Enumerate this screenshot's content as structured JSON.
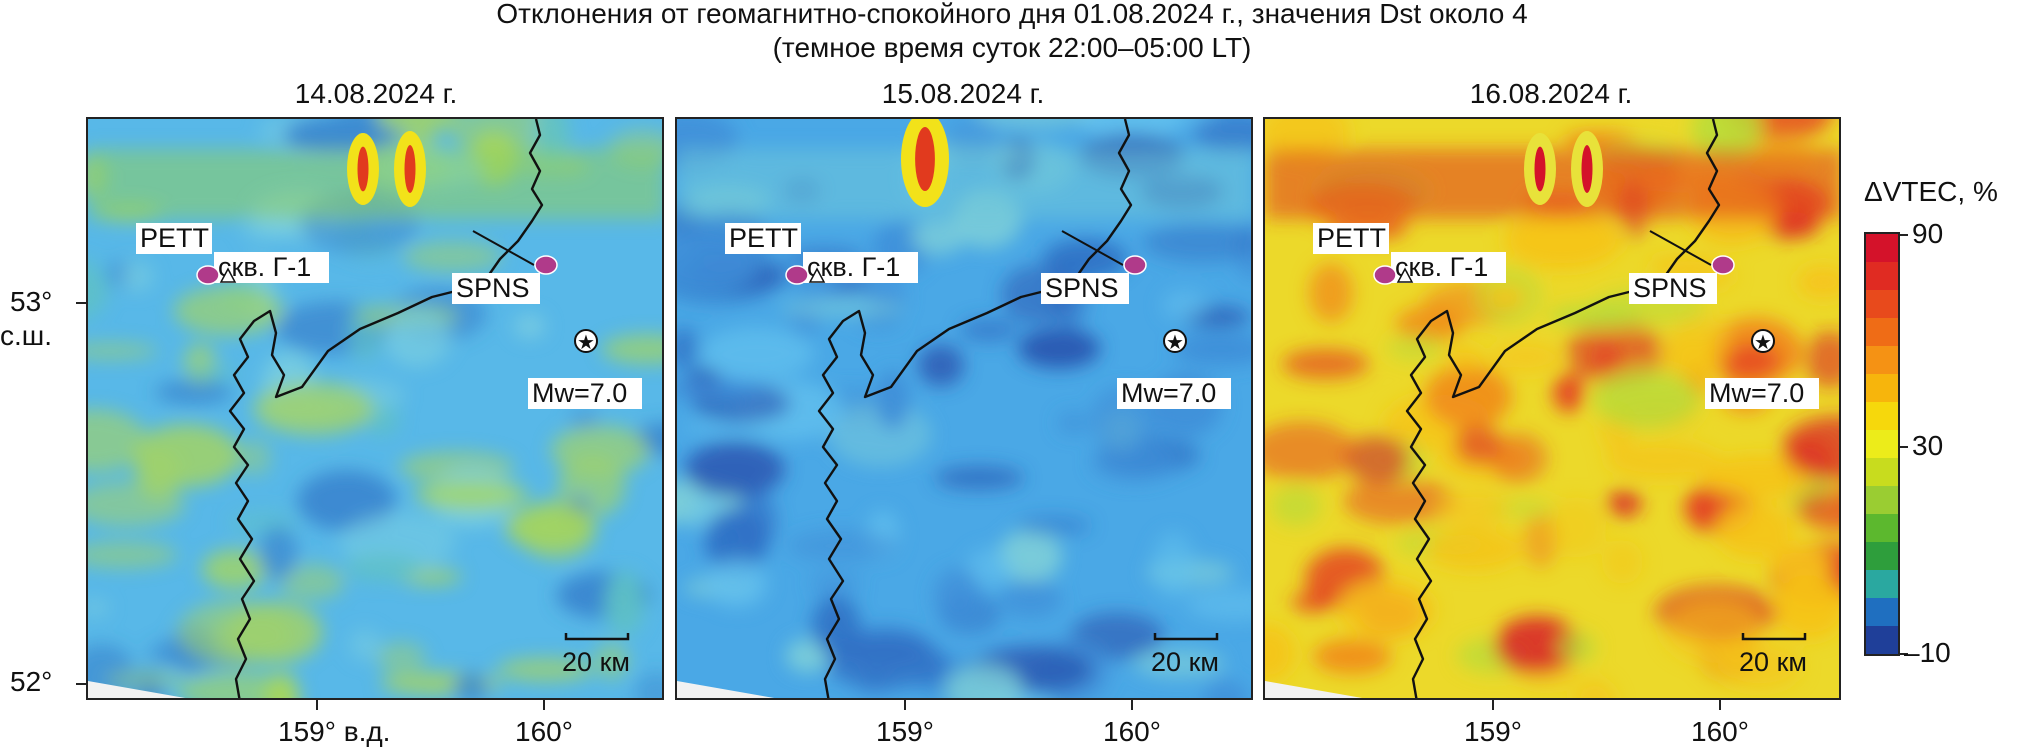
{
  "title": {
    "line1": "Отклонения от геомагнитно-спокойного дня 01.08.2024 г., значения Dst около 4",
    "line2": "(темное время суток 22:00–05:00 LT)"
  },
  "panels": [
    {
      "date": "14.08.2024 г.",
      "color_scheme": "low",
      "labels": {
        "station_west": "PETT",
        "well": "скв. Г-1",
        "station_east": "SPNS",
        "quake": "Mw=7.0",
        "scale": "20 км"
      }
    },
    {
      "date": "15.08.2024 г.",
      "color_scheme": "lowest",
      "labels": {
        "station_west": "PETT",
        "well": "скв. Г-1",
        "station_east": "SPNS",
        "quake": "Mw=7.0",
        "scale": "20 км"
      }
    },
    {
      "date": "16.08.2024 г.",
      "color_scheme": "high",
      "labels": {
        "station_west": "PETT",
        "well": "скв. Г-1",
        "station_east": "SPNS",
        "quake": "Mw=7.0",
        "scale": "20 км"
      }
    }
  ],
  "axes": {
    "lat_ticks": [
      "53°",
      "52°"
    ],
    "lat_suffix": "с.ш.",
    "lon_ticks": [
      "159° в.д.",
      "160°",
      "159°",
      "160°",
      "159°",
      "160°"
    ]
  },
  "colorbar": {
    "title": "ΔVTEC, %",
    "tick_labels": [
      "90",
      "30",
      "–10"
    ],
    "range": [
      -10,
      90
    ],
    "colors": [
      "#1f3f99",
      "#1f6fc0",
      "#2aa8a0",
      "#2e9e3c",
      "#5cb82e",
      "#9acd32",
      "#c8dc1e",
      "#ecec1a",
      "#f6d80c",
      "#f7b50c",
      "#f59214",
      "#ef6c16",
      "#e84a1c",
      "#e02b22",
      "#d4122a"
    ]
  },
  "styles": {
    "station_color": "#b03a8a",
    "coast_color": "#111111"
  }
}
